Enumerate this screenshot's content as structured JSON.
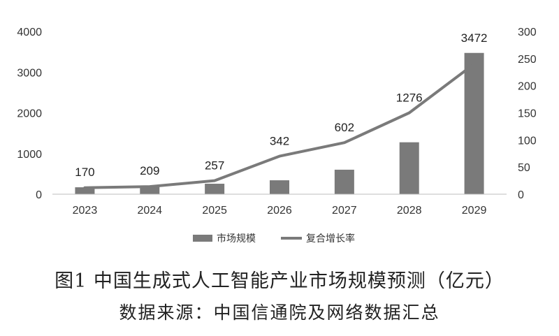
{
  "chart_data": {
    "type": "bar",
    "categories": [
      "2023",
      "2024",
      "2025",
      "2026",
      "2027",
      "2028",
      "2029"
    ],
    "series": [
      {
        "name": "市场规模",
        "type": "bar",
        "axis": "left",
        "values": [
          170,
          209,
          257,
          342,
          602,
          1276,
          3472
        ],
        "data_labels": [
          "170",
          "209",
          "257",
          "342",
          "602",
          "1276",
          "3472"
        ],
        "color": "#7a7a7a"
      },
      {
        "name": "复合增长率",
        "type": "line",
        "axis": "right",
        "values": [
          12,
          14,
          25,
          70,
          95,
          150,
          240
        ],
        "color": "#7a7a7a"
      }
    ],
    "y_left": {
      "ylim": [
        0,
        4000
      ],
      "ticks": [
        "0",
        "1000",
        "2000",
        "3000",
        "4000"
      ]
    },
    "y_right": {
      "ylim": [
        0,
        300
      ],
      "ticks": [
        "0",
        "50",
        "100",
        "150",
        "200",
        "250",
        "300"
      ]
    },
    "grid": false,
    "legend_position": "bottom"
  },
  "caption": {
    "title": "图1  中国生成式人工智能产业市场规模预测（亿元）",
    "source": "数据来源：中国信通院及网络数据汇总"
  }
}
